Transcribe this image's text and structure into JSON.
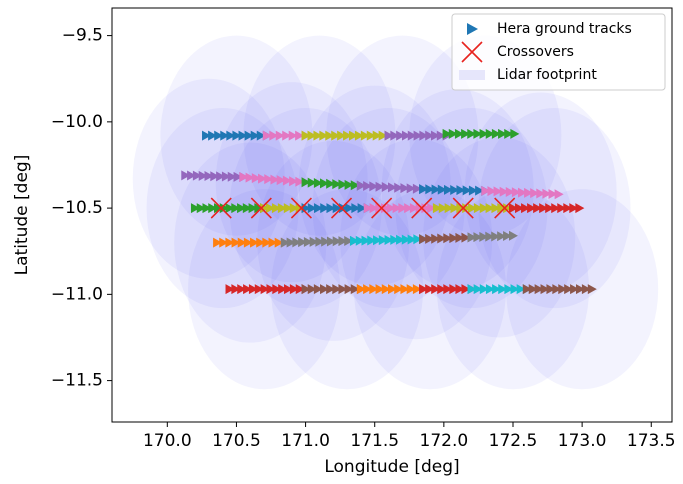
{
  "chart_data": {
    "type": "tracks",
    "xlabel": "Longitude [deg]",
    "ylabel": "Latitude [deg]",
    "xlim": [
      169.6,
      173.65
    ],
    "ylim": [
      -11.74,
      -9.34
    ],
    "xticks": [
      {
        "value": 170,
        "label": "170.0"
      },
      {
        "value": 170.5,
        "label": "170.5"
      },
      {
        "value": 171,
        "label": "171.0"
      },
      {
        "value": 171.5,
        "label": "171.5"
      },
      {
        "value": 172,
        "label": "172.0"
      },
      {
        "value": 172.5,
        "label": "172.5"
      },
      {
        "value": 173,
        "label": "173.0"
      },
      {
        "value": 173.5,
        "label": "173.5"
      }
    ],
    "yticks": [
      {
        "value": -9.5,
        "label": "−9.5"
      },
      {
        "value": -10,
        "label": "−10.0"
      },
      {
        "value": -10.5,
        "label": "−10.5"
      },
      {
        "value": -11,
        "label": "−11.0"
      },
      {
        "value": -11.5,
        "label": "−11.5"
      }
    ],
    "legend": {
      "position": "upper right",
      "entries": [
        {
          "name": "Hera ground tracks",
          "color": "#1f77b4"
        },
        {
          "name": "Crossovers",
          "color": "#e8231f"
        },
        {
          "name": "Lidar footprint",
          "color": "#e6e6fb"
        }
      ]
    },
    "tracks": [
      {
        "x": [
          170.28,
          170.72
        ],
        "y": [
          -10.08,
          -10.08
        ],
        "color": "#1f77b4"
      },
      {
        "x": [
          170.72,
          171.0
        ],
        "y": [
          -10.08,
          -10.08
        ],
        "color": "#e377c2"
      },
      {
        "x": [
          171.0,
          171.6
        ],
        "y": [
          -10.08,
          -10.08
        ],
        "color": "#bcbd22"
      },
      {
        "x": [
          171.6,
          172.02
        ],
        "y": [
          -10.08,
          -10.08
        ],
        "color": "#9467bd"
      },
      {
        "x": [
          172.02,
          172.51
        ],
        "y": [
          -10.07,
          -10.07
        ],
        "color": "#2ca02c"
      },
      {
        "x": [
          170.13,
          170.55
        ],
        "y": [
          -10.31,
          -10.32
        ],
        "color": "#9467bd"
      },
      {
        "x": [
          170.55,
          171.0
        ],
        "y": [
          -10.32,
          -10.35
        ],
        "color": "#e377c2"
      },
      {
        "x": [
          171.0,
          171.4
        ],
        "y": [
          -10.35,
          -10.37
        ],
        "color": "#2ca02c"
      },
      {
        "x": [
          171.4,
          171.85
        ],
        "y": [
          -10.37,
          -10.39
        ],
        "color": "#9467bd"
      },
      {
        "x": [
          171.85,
          172.3
        ],
        "y": [
          -10.39,
          -10.4
        ],
        "color": "#1f77b4"
      },
      {
        "x": [
          172.3,
          172.83
        ],
        "y": [
          -10.4,
          -10.42
        ],
        "color": "#e377c2"
      },
      {
        "x": [
          170.2,
          170.7
        ],
        "y": [
          -10.5,
          -10.5
        ],
        "color": "#2ca02c"
      },
      {
        "x": [
          170.7,
          171.0
        ],
        "y": [
          -10.5,
          -10.5
        ],
        "color": "#bcbd22"
      },
      {
        "x": [
          171.0,
          171.45
        ],
        "y": [
          -10.5,
          -10.5
        ],
        "color": "#1f77b4"
      },
      {
        "x": [
          171.45,
          171.95
        ],
        "y": [
          -10.5,
          -10.5
        ],
        "color": "#e377c2"
      },
      {
        "x": [
          171.95,
          172.5
        ],
        "y": [
          -10.5,
          -10.5
        ],
        "color": "#bcbd22"
      },
      {
        "x": [
          172.5,
          172.98
        ],
        "y": [
          -10.5,
          -10.5
        ],
        "color": "#d62728"
      },
      {
        "x": [
          170.36,
          170.85
        ],
        "y": [
          -10.7,
          -10.7
        ],
        "color": "#ff7f0e"
      },
      {
        "x": [
          170.85,
          171.35
        ],
        "y": [
          -10.7,
          -10.69
        ],
        "color": "#7f7f7f"
      },
      {
        "x": [
          171.35,
          171.85
        ],
        "y": [
          -10.69,
          -10.68
        ],
        "color": "#17becf"
      },
      {
        "x": [
          171.85,
          172.2
        ],
        "y": [
          -10.68,
          -10.67
        ],
        "color": "#8c564b"
      },
      {
        "x": [
          172.2,
          172.5
        ],
        "y": [
          -10.67,
          -10.66
        ],
        "color": "#7f7f7f"
      },
      {
        "x": [
          170.45,
          171.0
        ],
        "y": [
          -10.97,
          -10.97
        ],
        "color": "#d62728"
      },
      {
        "x": [
          171.0,
          171.4
        ],
        "y": [
          -10.97,
          -10.97
        ],
        "color": "#8c564b"
      },
      {
        "x": [
          171.4,
          171.85
        ],
        "y": [
          -10.97,
          -10.97
        ],
        "color": "#ff7f0e"
      },
      {
        "x": [
          171.85,
          172.2
        ],
        "y": [
          -10.97,
          -10.97
        ],
        "color": "#d62728"
      },
      {
        "x": [
          172.2,
          172.6
        ],
        "y": [
          -10.97,
          -10.97
        ],
        "color": "#17becf"
      },
      {
        "x": [
          172.6,
          173.07
        ],
        "y": [
          -10.97,
          -10.97
        ],
        "color": "#8c564b"
      }
    ],
    "crossovers": {
      "x": [
        170.39,
        170.68,
        170.97,
        171.26,
        171.55,
        171.84,
        172.14,
        172.44
      ],
      "y": [
        -10.5,
        -10.5,
        -10.5,
        -10.5,
        -10.5,
        -10.5,
        -10.5,
        -10.5
      ],
      "color": "#e8231f"
    },
    "footprints": {
      "x": [
        170.5,
        171.1,
        171.7,
        172.3,
        170.3,
        170.9,
        171.5,
        172.1,
        172.7,
        170.4,
        171.0,
        171.6,
        172.2,
        172.8,
        170.6,
        171.2,
        171.8,
        172.4,
        170.7,
        171.3,
        171.9,
        172.5,
        173.0
      ],
      "y": [
        -10.08,
        -10.08,
        -10.08,
        -10.08,
        -10.33,
        -10.35,
        -10.37,
        -10.39,
        -10.41,
        -10.5,
        -10.5,
        -10.5,
        -10.5,
        -10.5,
        -10.7,
        -10.69,
        -10.68,
        -10.67,
        -10.97,
        -10.97,
        -10.97,
        -10.97,
        -10.97
      ],
      "rx": 0.55,
      "ry": 0.58,
      "color": "#5a5af0",
      "opacity": 0.07
    }
  }
}
